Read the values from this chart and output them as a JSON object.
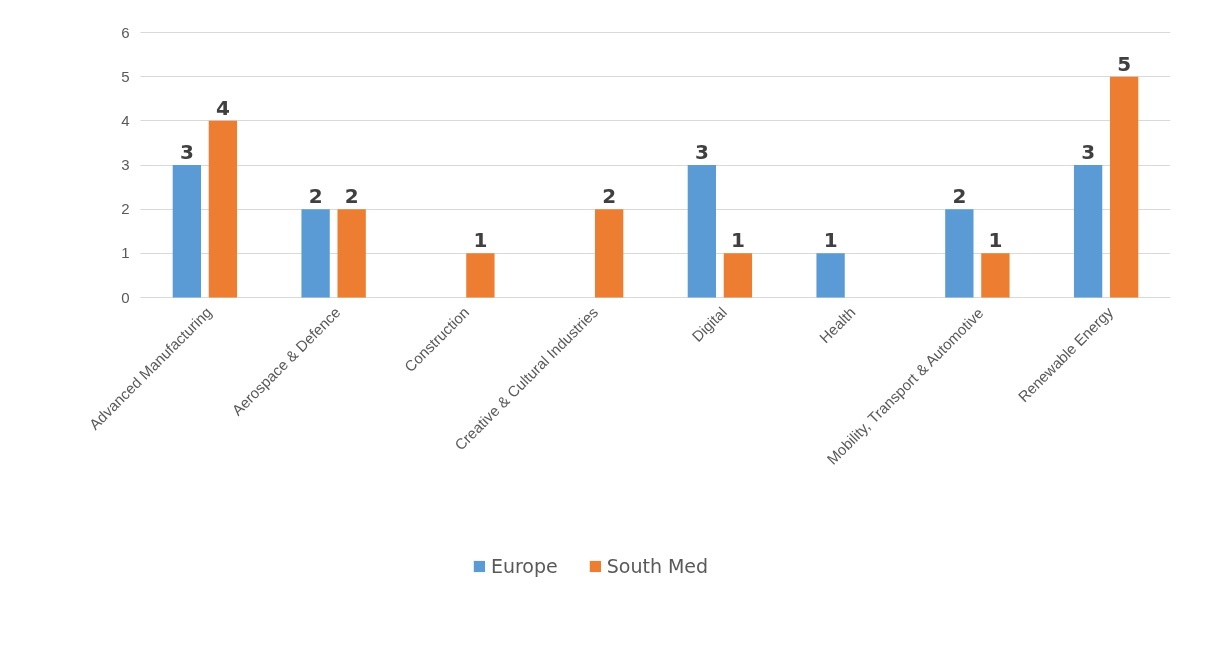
{
  "chart_data": {
    "type": "bar",
    "categories": [
      "Advanced Manufacturing",
      "Aerospace & Defence",
      "Construction",
      "Creative & Cultural Industries",
      "Digital",
      "Health",
      "Mobility, Transport & Automotive",
      "Renewable Energy"
    ],
    "series": [
      {
        "name": "Europe",
        "color": "#5b9bd5",
        "values": [
          3,
          2,
          null,
          null,
          3,
          1,
          2,
          3
        ]
      },
      {
        "name": "South Med",
        "color": "#ed7d31",
        "values": [
          4,
          2,
          1,
          2,
          1,
          null,
          1,
          5
        ]
      }
    ],
    "ylim": [
      0,
      6
    ],
    "yticks": [
      0,
      1,
      2,
      3,
      4,
      5,
      6
    ],
    "grid": "y",
    "legend": "bottom",
    "data_labels": true
  }
}
